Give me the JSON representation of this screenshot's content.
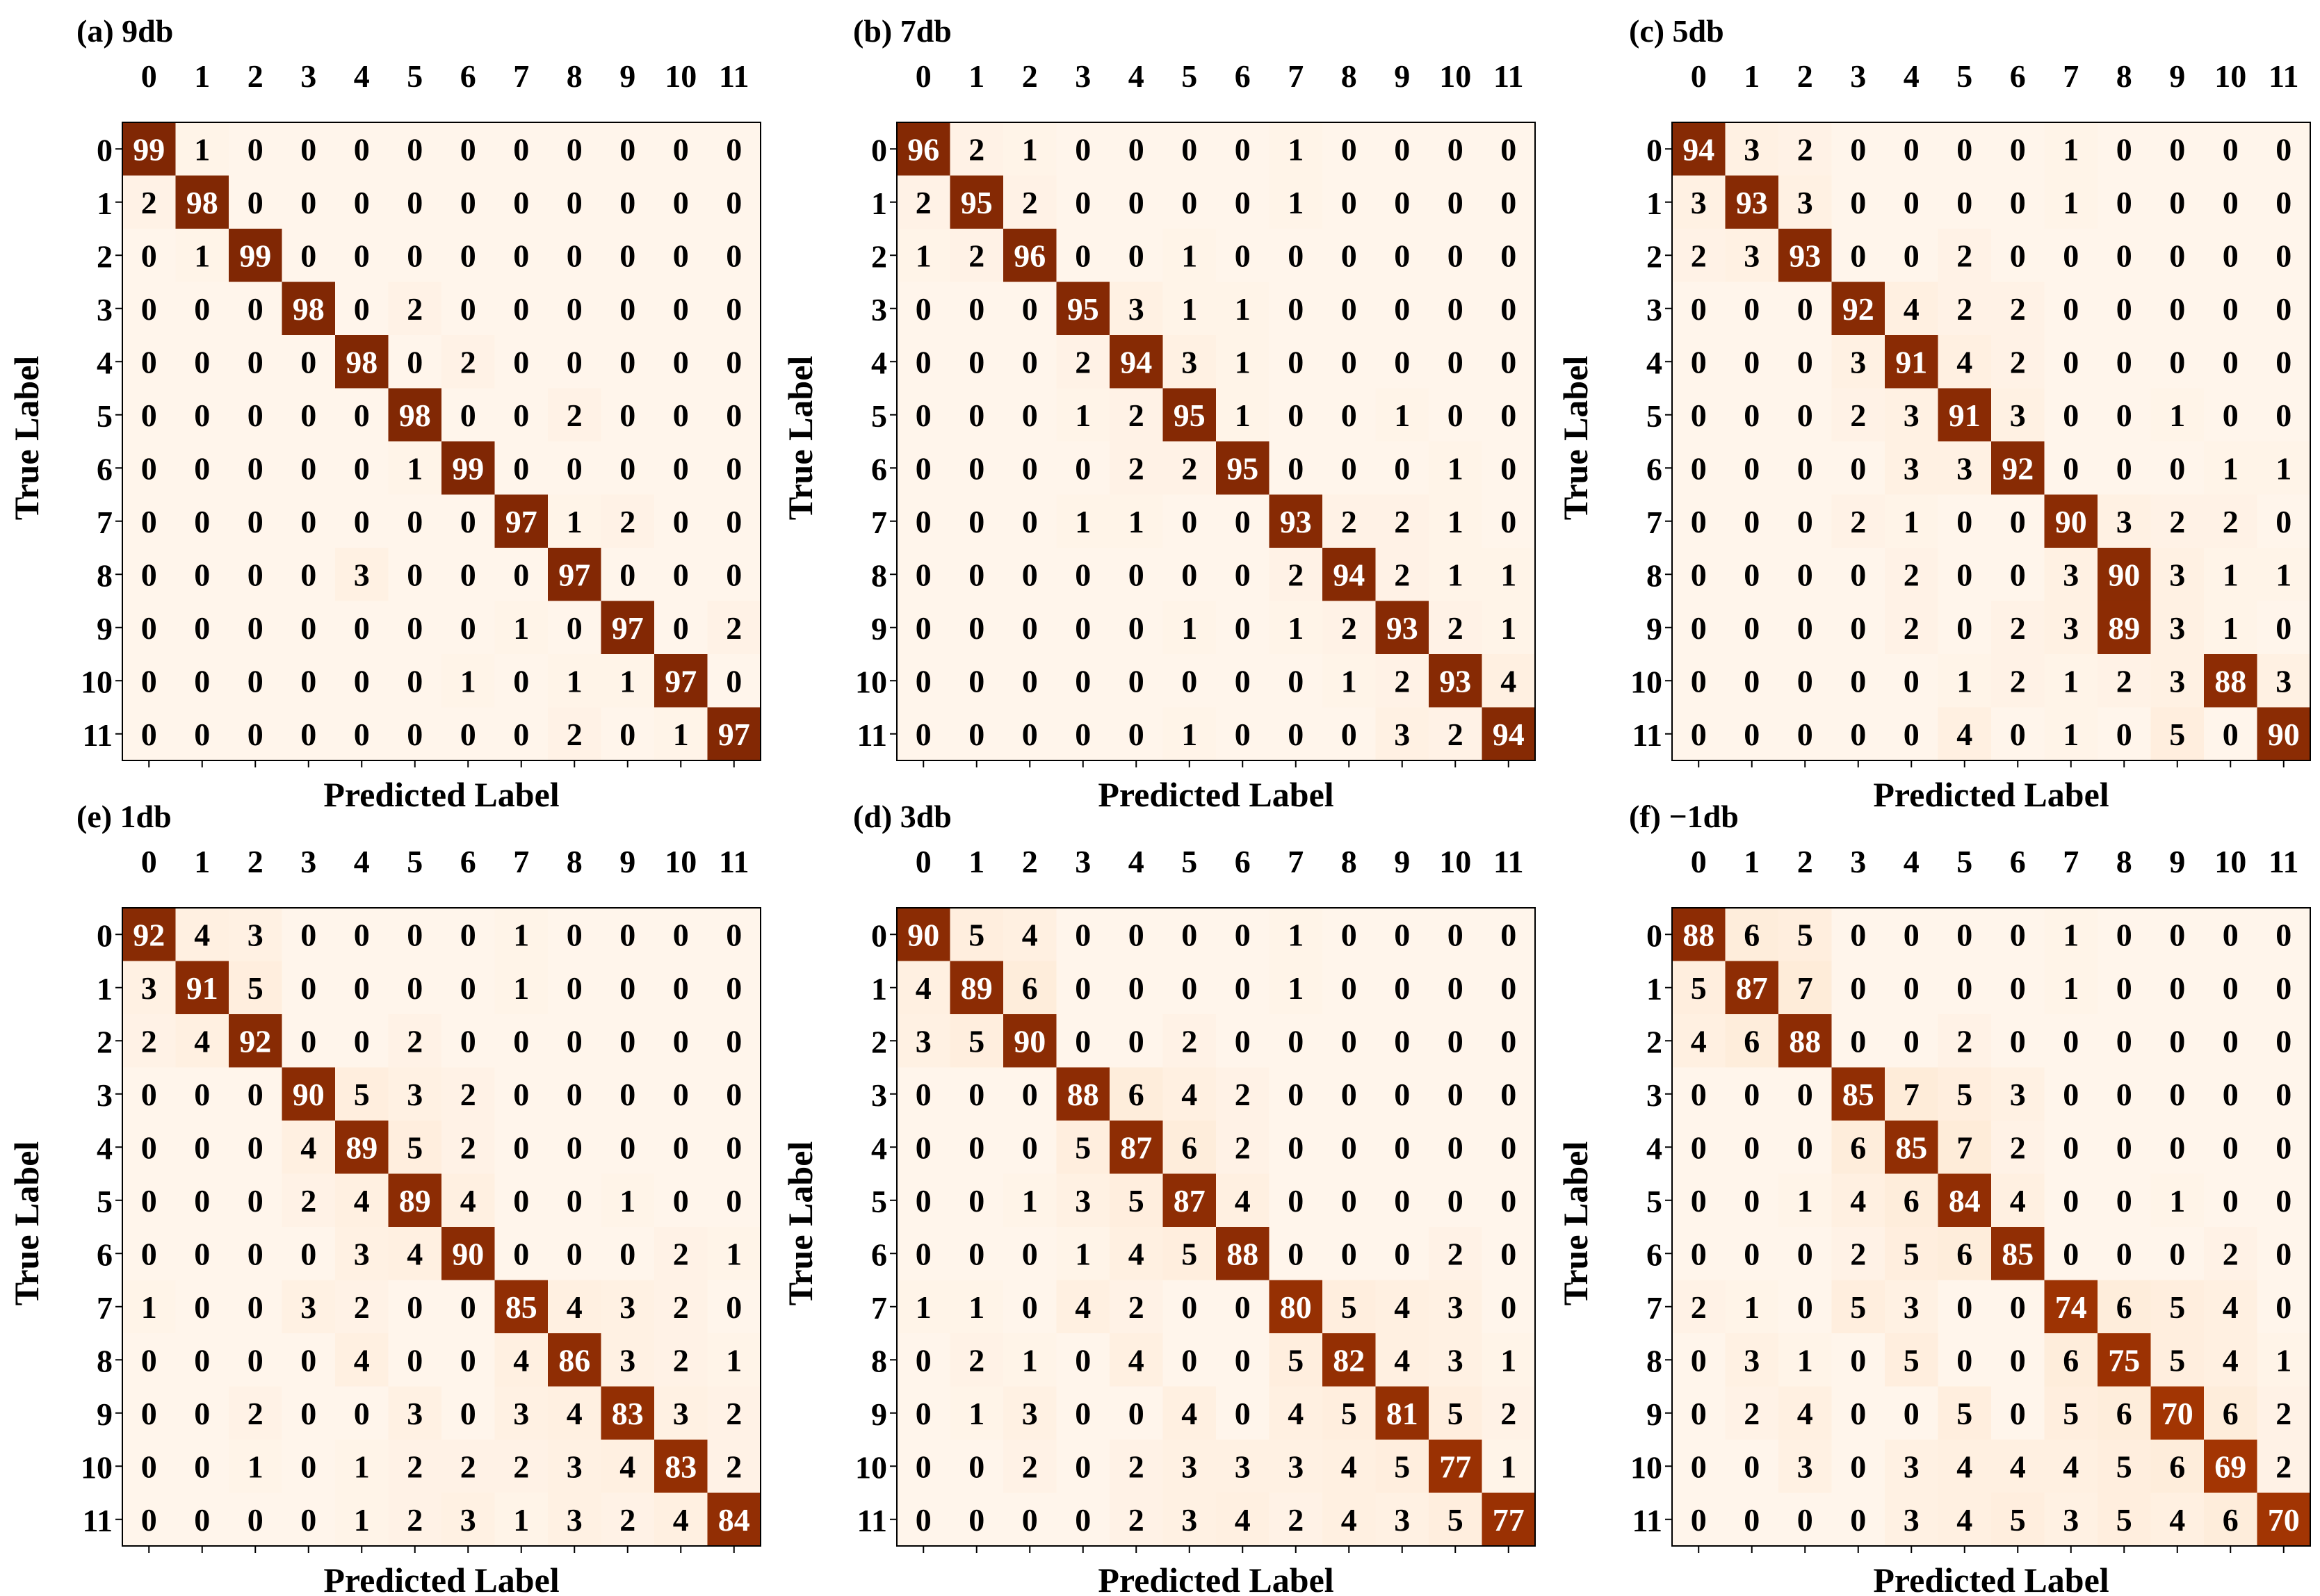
{
  "figure": {
    "xlabel": "Predicted Label",
    "ylabel": "True Label",
    "classes": [
      "0",
      "1",
      "2",
      "3",
      "4",
      "5",
      "6",
      "7",
      "8",
      "9",
      "10",
      "11"
    ]
  },
  "chart_data": [
    {
      "type": "heatmap",
      "title": "(a) 9db",
      "xlabel": "Predicted Label",
      "ylabel": "True Label",
      "x_ticks": [
        "0",
        "1",
        "2",
        "3",
        "4",
        "5",
        "6",
        "7",
        "8",
        "9",
        "10",
        "11"
      ],
      "y_ticks": [
        "0",
        "1",
        "2",
        "3",
        "4",
        "5",
        "6",
        "7",
        "8",
        "9",
        "10",
        "11"
      ],
      "matrix": [
        [
          99,
          1,
          0,
          0,
          0,
          0,
          0,
          0,
          0,
          0,
          0,
          0
        ],
        [
          2,
          98,
          0,
          0,
          0,
          0,
          0,
          0,
          0,
          0,
          0,
          0
        ],
        [
          0,
          1,
          99,
          0,
          0,
          0,
          0,
          0,
          0,
          0,
          0,
          0
        ],
        [
          0,
          0,
          0,
          98,
          0,
          2,
          0,
          0,
          0,
          0,
          0,
          0
        ],
        [
          0,
          0,
          0,
          0,
          98,
          0,
          2,
          0,
          0,
          0,
          0,
          0
        ],
        [
          0,
          0,
          0,
          0,
          0,
          98,
          0,
          0,
          2,
          0,
          0,
          0
        ],
        [
          0,
          0,
          0,
          0,
          0,
          1,
          99,
          0,
          0,
          0,
          0,
          0
        ],
        [
          0,
          0,
          0,
          0,
          0,
          0,
          0,
          97,
          1,
          2,
          0,
          0
        ],
        [
          0,
          0,
          0,
          0,
          3,
          0,
          0,
          0,
          97,
          0,
          0,
          0
        ],
        [
          0,
          0,
          0,
          0,
          0,
          0,
          0,
          1,
          0,
          97,
          0,
          2
        ],
        [
          0,
          0,
          0,
          0,
          0,
          0,
          1,
          0,
          1,
          1,
          97,
          0
        ],
        [
          0,
          0,
          0,
          0,
          0,
          0,
          0,
          0,
          2,
          0,
          1,
          97
        ]
      ]
    },
    {
      "type": "heatmap",
      "title": "(b) 7db",
      "xlabel": "Predicted Label",
      "ylabel": "True Label",
      "x_ticks": [
        "0",
        "1",
        "2",
        "3",
        "4",
        "5",
        "6",
        "7",
        "8",
        "9",
        "10",
        "11"
      ],
      "y_ticks": [
        "0",
        "1",
        "2",
        "3",
        "4",
        "5",
        "6",
        "7",
        "8",
        "9",
        "10",
        "11"
      ],
      "matrix": [
        [
          96,
          2,
          1,
          0,
          0,
          0,
          0,
          1,
          0,
          0,
          0,
          0
        ],
        [
          2,
          95,
          2,
          0,
          0,
          0,
          0,
          1,
          0,
          0,
          0,
          0
        ],
        [
          1,
          2,
          96,
          0,
          0,
          1,
          0,
          0,
          0,
          0,
          0,
          0
        ],
        [
          0,
          0,
          0,
          95,
          3,
          1,
          1,
          0,
          0,
          0,
          0,
          0
        ],
        [
          0,
          0,
          0,
          2,
          94,
          3,
          1,
          0,
          0,
          0,
          0,
          0
        ],
        [
          0,
          0,
          0,
          1,
          2,
          95,
          1,
          0,
          0,
          1,
          0,
          0
        ],
        [
          0,
          0,
          0,
          0,
          2,
          2,
          95,
          0,
          0,
          0,
          1,
          0
        ],
        [
          0,
          0,
          0,
          1,
          1,
          0,
          0,
          93,
          2,
          2,
          1,
          0
        ],
        [
          0,
          0,
          0,
          0,
          0,
          0,
          0,
          2,
          94,
          2,
          1,
          1
        ],
        [
          0,
          0,
          0,
          0,
          0,
          1,
          0,
          1,
          2,
          93,
          2,
          1
        ],
        [
          0,
          0,
          0,
          0,
          0,
          0,
          0,
          0,
          1,
          2,
          93,
          4
        ],
        [
          0,
          0,
          0,
          0,
          0,
          1,
          0,
          0,
          0,
          3,
          2,
          94
        ]
      ]
    },
    {
      "type": "heatmap",
      "title": "(c) 5db",
      "xlabel": "Predicted Label",
      "ylabel": "True Label",
      "x_ticks": [
        "0",
        "1",
        "2",
        "3",
        "4",
        "5",
        "6",
        "7",
        "8",
        "9",
        "10",
        "11"
      ],
      "y_ticks": [
        "0",
        "1",
        "2",
        "3",
        "4",
        "5",
        "6",
        "7",
        "8",
        "9",
        "10",
        "11"
      ],
      "matrix": [
        [
          94,
          3,
          2,
          0,
          0,
          0,
          0,
          1,
          0,
          0,
          0,
          0
        ],
        [
          3,
          93,
          3,
          0,
          0,
          0,
          0,
          1,
          0,
          0,
          0,
          0
        ],
        [
          2,
          3,
          93,
          0,
          0,
          2,
          0,
          0,
          0,
          0,
          0,
          0
        ],
        [
          0,
          0,
          0,
          92,
          4,
          2,
          2,
          0,
          0,
          0,
          0,
          0
        ],
        [
          0,
          0,
          0,
          3,
          91,
          4,
          2,
          0,
          0,
          0,
          0,
          0
        ],
        [
          0,
          0,
          0,
          2,
          3,
          91,
          3,
          0,
          0,
          1,
          0,
          0
        ],
        [
          0,
          0,
          0,
          0,
          3,
          3,
          92,
          0,
          0,
          0,
          1,
          1
        ],
        [
          0,
          0,
          0,
          2,
          1,
          0,
          0,
          90,
          3,
          2,
          2,
          0
        ],
        [
          0,
          0,
          0,
          0,
          2,
          0,
          0,
          3,
          90,
          3,
          1,
          1
        ],
        [
          0,
          0,
          0,
          0,
          2,
          0,
          2,
          3,
          89,
          3,
          1,
          0
        ],
        [
          0,
          0,
          0,
          0,
          0,
          1,
          2,
          1,
          2,
          3,
          88,
          3
        ],
        [
          0,
          0,
          0,
          0,
          0,
          4,
          0,
          1,
          0,
          5,
          0,
          90
        ]
      ]
    },
    {
      "type": "heatmap",
      "title": "(e) 1db",
      "xlabel": "Predicted Label",
      "ylabel": "True Label",
      "x_ticks": [
        "0",
        "1",
        "2",
        "3",
        "4",
        "5",
        "6",
        "7",
        "8",
        "9",
        "10",
        "11"
      ],
      "y_ticks": [
        "0",
        "1",
        "2",
        "3",
        "4",
        "5",
        "6",
        "7",
        "8",
        "9",
        "10",
        "11"
      ],
      "matrix": [
        [
          92,
          4,
          3,
          0,
          0,
          0,
          0,
          1,
          0,
          0,
          0,
          0
        ],
        [
          3,
          91,
          5,
          0,
          0,
          0,
          0,
          1,
          0,
          0,
          0,
          0
        ],
        [
          2,
          4,
          92,
          0,
          0,
          2,
          0,
          0,
          0,
          0,
          0,
          0
        ],
        [
          0,
          0,
          0,
          90,
          5,
          3,
          2,
          0,
          0,
          0,
          0,
          0
        ],
        [
          0,
          0,
          0,
          4,
          89,
          5,
          2,
          0,
          0,
          0,
          0,
          0
        ],
        [
          0,
          0,
          0,
          2,
          4,
          89,
          4,
          0,
          0,
          1,
          0,
          0
        ],
        [
          0,
          0,
          0,
          0,
          3,
          4,
          90,
          0,
          0,
          0,
          2,
          1
        ],
        [
          1,
          0,
          0,
          3,
          2,
          0,
          0,
          85,
          4,
          3,
          2,
          0
        ],
        [
          0,
          0,
          0,
          0,
          4,
          0,
          0,
          4,
          86,
          3,
          2,
          1
        ],
        [
          0,
          0,
          2,
          0,
          0,
          3,
          0,
          3,
          4,
          83,
          3,
          2
        ],
        [
          0,
          0,
          1,
          0,
          1,
          2,
          2,
          2,
          3,
          4,
          83,
          2
        ],
        [
          0,
          0,
          0,
          0,
          1,
          2,
          3,
          1,
          3,
          2,
          4,
          84
        ]
      ]
    },
    {
      "type": "heatmap",
      "title": "(d) 3db",
      "xlabel": "Predicted Label",
      "ylabel": "True Label",
      "x_ticks": [
        "0",
        "1",
        "2",
        "3",
        "4",
        "5",
        "6",
        "7",
        "8",
        "9",
        "10",
        "11"
      ],
      "y_ticks": [
        "0",
        "1",
        "2",
        "3",
        "4",
        "5",
        "6",
        "7",
        "8",
        "9",
        "10",
        "11"
      ],
      "matrix": [
        [
          90,
          5,
          4,
          0,
          0,
          0,
          0,
          1,
          0,
          0,
          0,
          0
        ],
        [
          4,
          89,
          6,
          0,
          0,
          0,
          0,
          1,
          0,
          0,
          0,
          0
        ],
        [
          3,
          5,
          90,
          0,
          0,
          2,
          0,
          0,
          0,
          0,
          0,
          0
        ],
        [
          0,
          0,
          0,
          88,
          6,
          4,
          2,
          0,
          0,
          0,
          0,
          0
        ],
        [
          0,
          0,
          0,
          5,
          87,
          6,
          2,
          0,
          0,
          0,
          0,
          0
        ],
        [
          0,
          0,
          1,
          3,
          5,
          87,
          4,
          0,
          0,
          0,
          0,
          0
        ],
        [
          0,
          0,
          0,
          1,
          4,
          5,
          88,
          0,
          0,
          0,
          2,
          0
        ],
        [
          1,
          1,
          0,
          4,
          2,
          0,
          0,
          80,
          5,
          4,
          3,
          0
        ],
        [
          0,
          2,
          1,
          0,
          4,
          0,
          0,
          5,
          82,
          4,
          3,
          1
        ],
        [
          0,
          1,
          3,
          0,
          0,
          4,
          0,
          4,
          5,
          81,
          5,
          2
        ],
        [
          0,
          0,
          2,
          0,
          2,
          3,
          3,
          3,
          4,
          5,
          77,
          1
        ],
        [
          0,
          0,
          0,
          0,
          2,
          3,
          4,
          2,
          4,
          3,
          5,
          77
        ]
      ]
    },
    {
      "type": "heatmap",
      "title": "(f) −1db",
      "xlabel": "Predicted Label",
      "ylabel": "True Label",
      "x_ticks": [
        "0",
        "1",
        "2",
        "3",
        "4",
        "5",
        "6",
        "7",
        "8",
        "9",
        "10",
        "11"
      ],
      "y_ticks": [
        "0",
        "1",
        "2",
        "3",
        "4",
        "5",
        "6",
        "7",
        "8",
        "9",
        "10",
        "11"
      ],
      "matrix": [
        [
          88,
          6,
          5,
          0,
          0,
          0,
          0,
          1,
          0,
          0,
          0,
          0
        ],
        [
          5,
          87,
          7,
          0,
          0,
          0,
          0,
          1,
          0,
          0,
          0,
          0
        ],
        [
          4,
          6,
          88,
          0,
          0,
          2,
          0,
          0,
          0,
          0,
          0,
          0
        ],
        [
          0,
          0,
          0,
          85,
          7,
          5,
          3,
          0,
          0,
          0,
          0,
          0
        ],
        [
          0,
          0,
          0,
          6,
          85,
          7,
          2,
          0,
          0,
          0,
          0,
          0
        ],
        [
          0,
          0,
          1,
          4,
          6,
          84,
          4,
          0,
          0,
          1,
          0,
          0
        ],
        [
          0,
          0,
          0,
          2,
          5,
          6,
          85,
          0,
          0,
          0,
          2,
          0
        ],
        [
          2,
          1,
          0,
          5,
          3,
          0,
          0,
          74,
          6,
          5,
          4,
          0
        ],
        [
          0,
          3,
          1,
          0,
          5,
          0,
          0,
          6,
          75,
          5,
          4,
          1
        ],
        [
          0,
          2,
          4,
          0,
          0,
          5,
          0,
          5,
          6,
          70,
          6,
          2
        ],
        [
          0,
          0,
          3,
          0,
          3,
          4,
          4,
          4,
          5,
          6,
          69,
          2
        ],
        [
          0,
          0,
          0,
          0,
          3,
          4,
          5,
          3,
          5,
          4,
          6,
          70
        ]
      ]
    }
  ]
}
